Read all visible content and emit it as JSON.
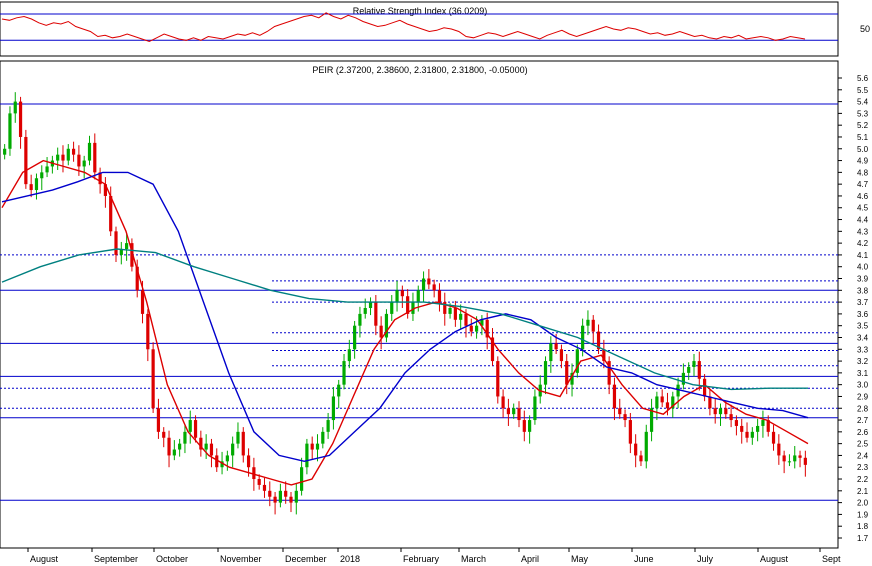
{
  "chart_data": [
    {
      "type": "line",
      "title": "Relative Strength Index (36.0209)",
      "ylim": [
        30,
        70
      ],
      "y_ticks": [
        50
      ],
      "grid": false,
      "reference_levels": [
        62,
        41
      ],
      "series": [
        {
          "color": "#dd0000",
          "values": [
            58,
            57,
            59,
            60,
            58,
            55,
            53,
            55,
            54,
            56,
            52,
            50,
            48,
            44,
            45,
            43,
            44,
            46,
            44,
            42,
            40,
            43,
            46,
            44,
            42,
            41,
            43,
            41,
            44,
            43,
            42,
            44,
            46,
            45,
            47,
            45,
            48,
            52,
            54,
            56,
            58,
            60,
            61,
            59,
            63,
            60,
            58,
            61,
            59,
            56,
            54,
            52,
            53,
            55,
            57,
            54,
            52,
            50,
            48,
            49,
            51,
            50,
            48,
            44,
            43,
            45,
            47,
            46,
            44,
            46,
            48,
            46,
            44,
            42,
            45,
            47,
            49,
            46,
            44,
            46,
            48,
            50,
            52,
            50,
            49,
            51,
            50,
            48,
            46,
            47,
            45,
            46,
            48,
            46,
            44,
            45,
            43,
            42,
            44,
            43,
            45,
            42,
            43,
            44,
            43,
            41,
            42,
            44,
            43,
            42
          ]
        }
      ]
    },
    {
      "type": "candlestick",
      "title": "PEIR (2.37200, 2.38600, 2.31800, 2.31800, -0.05000)",
      "ylim": [
        1.7,
        5.6
      ],
      "y_ticks": [
        "1.7",
        "1.8",
        "1.9",
        "2.0",
        "2.1",
        "2.2",
        "2.3",
        "2.4",
        "2.5",
        "2.6",
        "2.7",
        "2.8",
        "2.9",
        "3.0",
        "3.1",
        "3.2",
        "3.3",
        "3.4",
        "3.5",
        "3.6",
        "3.7",
        "3.8",
        "3.9",
        "4.0",
        "4.1",
        "4.2",
        "4.3",
        "4.4",
        "4.5",
        "4.6",
        "4.7",
        "4.8",
        "4.9",
        "5.0",
        "5.1",
        "5.2",
        "5.3",
        "5.4",
        "5.5",
        "5.6"
      ],
      "x_labels": [
        "August",
        "September",
        "October",
        "November",
        "December",
        "2018",
        "February",
        "March",
        "April",
        "May",
        "June",
        "July",
        "August",
        "Sept"
      ],
      "grid": false,
      "close_approx": [
        5.0,
        5.3,
        5.4,
        5.1,
        4.7,
        4.65,
        4.75,
        4.8,
        4.85,
        4.9,
        4.95,
        4.9,
        5.0,
        4.95,
        4.85,
        4.9,
        5.05,
        4.8,
        4.7,
        4.6,
        4.3,
        4.1,
        4.15,
        4.2,
        4.0,
        3.8,
        3.6,
        3.3,
        2.8,
        2.6,
        2.55,
        2.4,
        2.45,
        2.5,
        2.6,
        2.7,
        2.55,
        2.45,
        2.5,
        2.4,
        2.3,
        2.35,
        2.4,
        2.5,
        2.6,
        2.4,
        2.3,
        2.2,
        2.15,
        2.1,
        2.05,
        2.0,
        2.1,
        2.05,
        2.0,
        2.1,
        2.3,
        2.5,
        2.45,
        2.5,
        2.6,
        2.7,
        2.9,
        3.0,
        3.2,
        3.3,
        3.5,
        3.6,
        3.65,
        3.7,
        3.5,
        3.4,
        3.6,
        3.7,
        3.8,
        3.75,
        3.6,
        3.7,
        3.8,
        3.9,
        3.85,
        3.8,
        3.7,
        3.6,
        3.65,
        3.55,
        3.6,
        3.5,
        3.45,
        3.5,
        3.55,
        3.4,
        3.2,
        2.9,
        2.8,
        2.75,
        2.8,
        2.7,
        2.6,
        2.7,
        2.9,
        3.0,
        3.2,
        3.35,
        3.3,
        3.2,
        3.0,
        3.1,
        3.3,
        3.5,
        3.55,
        3.45,
        3.3,
        3.2,
        3.0,
        2.8,
        2.75,
        2.7,
        2.5,
        2.4,
        2.35,
        2.6,
        2.8,
        2.9,
        2.85,
        2.8,
        2.9,
        3.0,
        3.1,
        3.15,
        3.2,
        3.05,
        2.9,
        2.8,
        2.75,
        2.8,
        2.75,
        2.7,
        2.65,
        2.6,
        2.55,
        2.6,
        2.65,
        2.7,
        2.6,
        2.5,
        2.4,
        2.35,
        2.35,
        2.4,
        2.38,
        2.32
      ],
      "horizontal_levels_solid": [
        5.38,
        3.8,
        3.35,
        3.07,
        2.72,
        2.02
      ],
      "horizontal_levels_dotted": [
        4.1,
        3.88,
        3.7,
        3.44,
        3.29,
        3.16,
        2.97,
        2.8
      ],
      "series": [
        {
          "color": "#dd0000",
          "values": [
            4.5,
            4.8,
            4.9,
            4.85,
            4.8,
            4.7,
            4.3,
            3.7,
            3.0,
            2.6,
            2.4,
            2.3,
            2.25,
            2.2,
            2.15,
            2.2,
            2.5,
            2.9,
            3.3,
            3.55,
            3.65,
            3.7,
            3.65,
            3.55,
            3.3,
            3.1,
            2.95,
            2.9,
            3.2,
            3.25,
            3.0,
            2.8,
            2.75,
            2.9,
            3.0,
            2.85,
            2.75,
            2.7,
            2.6,
            2.5
          ]
        },
        {
          "color": "#0000cc",
          "values": [
            4.55,
            4.6,
            4.65,
            4.72,
            4.8,
            4.8,
            4.7,
            4.3,
            3.7,
            3.1,
            2.6,
            2.4,
            2.35,
            2.4,
            2.6,
            2.8,
            3.1,
            3.3,
            3.45,
            3.55,
            3.6,
            3.55,
            3.4,
            3.3,
            3.15,
            3.1,
            3.0,
            2.95,
            2.9,
            2.85,
            2.8,
            2.78,
            2.72
          ]
        },
        {
          "color": "#008080",
          "values": [
            3.87,
            4.0,
            4.1,
            4.15,
            4.12,
            4.0,
            3.9,
            3.8,
            3.73,
            3.7,
            3.7,
            3.7,
            3.66,
            3.6,
            3.5,
            3.4,
            3.25,
            3.1,
            3.0,
            2.96,
            2.97,
            2.97
          ]
        }
      ]
    }
  ]
}
